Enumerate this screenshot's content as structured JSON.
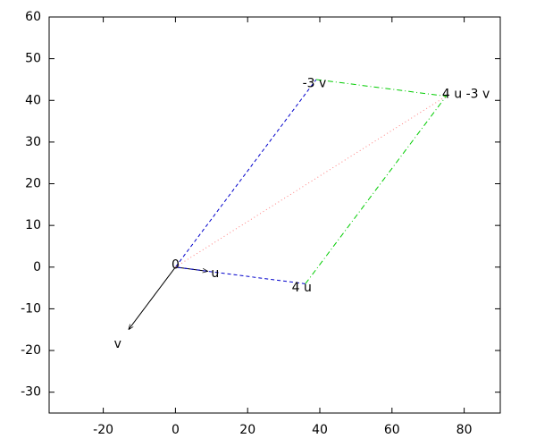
{
  "chart_data": {
    "type": "vector",
    "xlim": [
      -35,
      90
    ],
    "xticks": [
      -20,
      0,
      20,
      40,
      60,
      80
    ],
    "ylim": [
      -35,
      60
    ],
    "yticks": [
      -30,
      -20,
      -10,
      0,
      10,
      20,
      30,
      40,
      50,
      60
    ],
    "series": [
      {
        "color": "#000000",
        "style": "solid",
        "arrow": true,
        "x": [
          0,
          -13
        ],
        "values": [
          0,
          -15
        ]
      },
      {
        "color": "#000000",
        "style": "solid",
        "arrow": true,
        "x": [
          0,
          9
        ],
        "values": [
          0,
          -1
        ]
      },
      {
        "color": "#0000cc",
        "style": "dashed",
        "arrow": false,
        "x": [
          36,
          0,
          39
        ],
        "values": [
          -4,
          0,
          45
        ]
      },
      {
        "color": "#00cc00",
        "style": "dashdot",
        "arrow": false,
        "x": [
          36,
          75,
          39
        ],
        "values": [
          -4,
          41,
          45
        ]
      },
      {
        "color": "#ff8080",
        "style": "dotted",
        "arrow": false,
        "x": [
          0,
          75
        ],
        "values": [
          0,
          41
        ]
      }
    ],
    "annotations": [
      {
        "text": "0",
        "x": 0,
        "y": 0.5
      },
      {
        "text": "u",
        "x": 11,
        "y": -1.5
      },
      {
        "text": "v",
        "x": -16,
        "y": -18.5
      },
      {
        "text": "4 u",
        "x": 35,
        "y": -5
      },
      {
        "text": "-3 v",
        "x": 38.5,
        "y": 44
      },
      {
        "text": "4 u -3 v",
        "x": 80.5,
        "y": 41.5
      }
    ]
  }
}
